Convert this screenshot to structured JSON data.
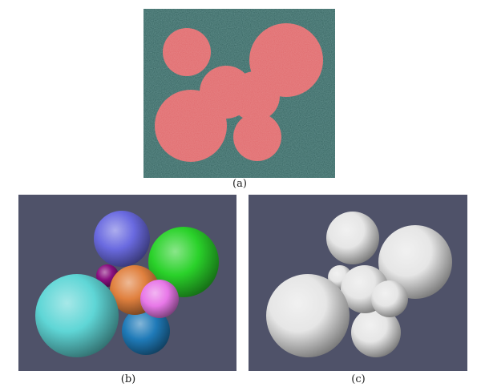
{
  "captions": {
    "a": "(a)",
    "b": "(b)",
    "c": "(c)"
  },
  "colors": {
    "panel_a_background": "#2f5f5c",
    "panel_a_circles": "#e0676a",
    "panel_3d_background": "#4f5269",
    "sphere_blue": "#6a6ae0",
    "sphere_green": "#2ad22a",
    "sphere_purple": "#8a1080",
    "sphere_orange": "#e0803e",
    "sphere_magenta": "#e878e8",
    "sphere_cyan": "#5fd6d6",
    "sphere_deep_blue": "#1f7ab8",
    "sphere_white": "#e6e6e6"
  }
}
